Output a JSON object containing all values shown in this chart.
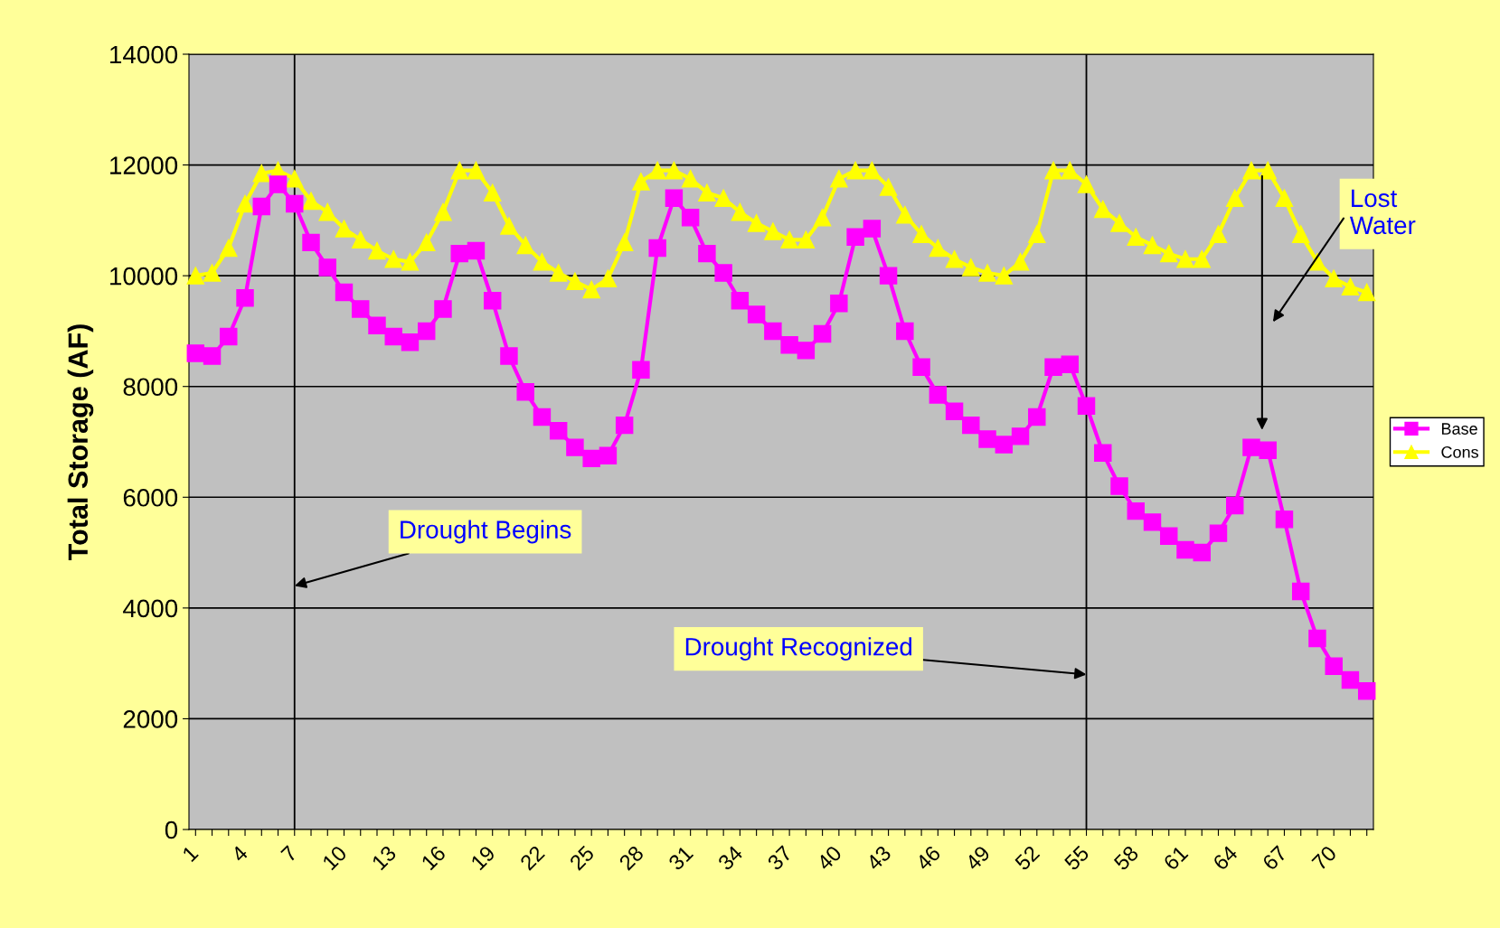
{
  "chart_data": {
    "type": "line",
    "ylabel": "Total Storage (AF)",
    "categories": [
      "1",
      null,
      null,
      "4",
      null,
      null,
      "7",
      null,
      null,
      "10",
      null,
      null,
      "13",
      null,
      null,
      "16",
      null,
      null,
      "19",
      null,
      null,
      "22",
      null,
      null,
      "25",
      null,
      null,
      "28",
      null,
      null,
      "31",
      null,
      null,
      "34",
      null,
      null,
      "37",
      null,
      null,
      "40",
      null,
      null,
      "43",
      null,
      null,
      "46",
      null,
      null,
      "49",
      null,
      null,
      "52",
      null,
      null,
      "55",
      null,
      null,
      "58",
      null,
      null,
      "61",
      null,
      null,
      "64",
      null,
      null,
      "67",
      null,
      null,
      "70",
      null,
      null
    ],
    "series": [
      {
        "name": "Base",
        "color": "#ff00ff",
        "marker": "square",
        "values": [
          8600,
          8550,
          8900,
          9600,
          11250,
          11650,
          11300,
          10600,
          10150,
          9700,
          9400,
          9100,
          8900,
          8800,
          9000,
          9400,
          10400,
          10450,
          9550,
          8550,
          7900,
          7450,
          7200,
          6900,
          6700,
          6750,
          7300,
          8300,
          10500,
          11400,
          11050,
          10400,
          10050,
          9550,
          9300,
          9000,
          8750,
          8650,
          8950,
          9500,
          10700,
          10850,
          10000,
          9000,
          8350,
          7850,
          7550,
          7300,
          7050,
          6950,
          7100,
          7450,
          8350,
          8400,
          7650,
          6800,
          6200,
          5750,
          5550,
          5300,
          5050,
          5000,
          5350,
          5850,
          6900,
          6850,
          5600,
          4300,
          3450,
          2950,
          2700,
          2500
        ]
      },
      {
        "name": "Cons",
        "color": "#ffff00",
        "marker": "triangle",
        "values": [
          10000,
          10050,
          10500,
          11300,
          11850,
          11900,
          11750,
          11350,
          11150,
          10850,
          10650,
          10450,
          10300,
          10250,
          10600,
          11150,
          11900,
          11900,
          11500,
          10900,
          10550,
          10250,
          10050,
          9900,
          9750,
          9950,
          10600,
          11700,
          11900,
          11900,
          11750,
          11500,
          11400,
          11150,
          10950,
          10800,
          10650,
          10650,
          11050,
          11750,
          11900,
          11900,
          11600,
          11100,
          10750,
          10500,
          10300,
          10150,
          10050,
          10000,
          10250,
          10750,
          11900,
          11900,
          11650,
          11200,
          10950,
          10700,
          10550,
          10400,
          10300,
          10300,
          10750,
          11400,
          11900,
          11900,
          11400,
          10750,
          10250,
          9950,
          9800,
          9700
        ]
      }
    ],
    "ylim": [
      0,
      14000
    ],
    "yticks": [
      0,
      2000,
      4000,
      6000,
      8000,
      10000,
      12000,
      14000
    ],
    "grid": "y",
    "legend": "right",
    "ref_lines": [
      {
        "axis": "x",
        "value": "7",
        "color": "#000000"
      },
      {
        "axis": "x",
        "value": "55",
        "color": "#000000"
      }
    ],
    "annotations": [
      {
        "text": "Drought Begins",
        "x": "7",
        "y": 4400
      },
      {
        "text": "Drought Recognized",
        "x": "55",
        "y": 2800
      },
      "Lost\nWater"
    ]
  }
}
